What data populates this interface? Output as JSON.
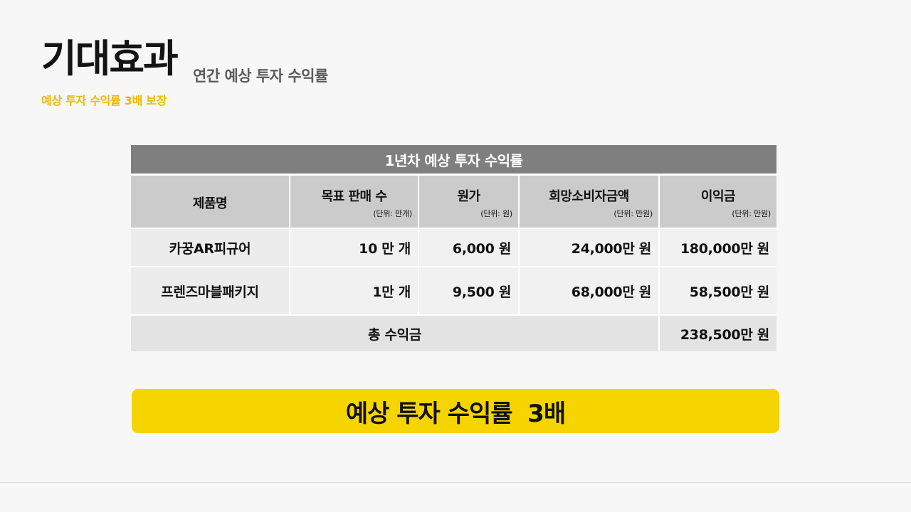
{
  "header": {
    "title": "기대효과",
    "subtitle": "연간 예상 투자 수익률",
    "tagline": "예상 투자 수익률 3배 보장"
  },
  "table": {
    "caption": "1년차 예상 투자 수익률",
    "columns": [
      {
        "label": "제품명",
        "unit": ""
      },
      {
        "label": "목표 판매 수",
        "unit": "(단위: 만개)"
      },
      {
        "label": "원가",
        "unit": "(단위: 원)"
      },
      {
        "label": "희망소비자금액",
        "unit": "(단위: 만원)"
      },
      {
        "label": "이익금",
        "unit": "(단위: 만원)"
      }
    ],
    "rows": [
      [
        "카꿍AR피규어",
        "10 만 개",
        "6,000 원",
        "24,000만 원",
        "180,000만 원"
      ],
      [
        "프렌즈마블패키지",
        "1만 개",
        "9,500 원",
        "68,000만 원",
        "58,500만 원"
      ]
    ],
    "total": {
      "label": "총 수익금",
      "value": "238,500만 원"
    }
  },
  "banner": {
    "text": "예상 투자 수익률  3배"
  },
  "colors": {
    "accent": "#f5d400",
    "tagline": "#f2b800",
    "caption_bg": "#7f7f7f",
    "header_bg": "#cbcbcb"
  }
}
